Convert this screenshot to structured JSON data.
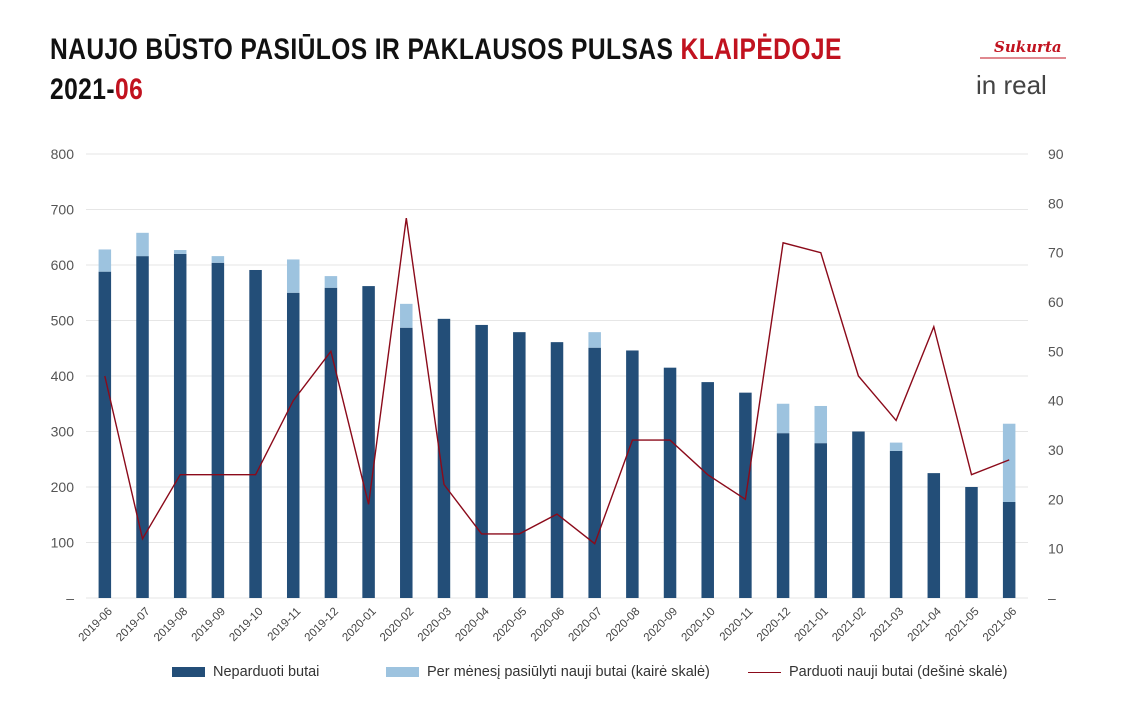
{
  "header": {
    "title_main": "NAUJO BŪSTO PASIŪLOS IR PAKLAUSOS PULSAS ",
    "title_city": "KLAIPĖDOJE",
    "period_prefix": "2021-",
    "period_month": "06"
  },
  "logo": {
    "tagline": "Sukurta",
    "brand": "in real"
  },
  "colors": {
    "unsold": "#234e78",
    "offered": "#9dc3df",
    "sold": "#8b0a1a",
    "accent": "#c1121f",
    "grid": "#e6e6e6"
  },
  "chart_data": {
    "type": "bar",
    "stacked": true,
    "categories": [
      "2019-06",
      "2019-07",
      "2019-08",
      "2019-09",
      "2019-10",
      "2019-11",
      "2019-12",
      "2020-01",
      "2020-02",
      "2020-03",
      "2020-04",
      "2020-05",
      "2020-06",
      "2020-07",
      "2020-08",
      "2020-09",
      "2020-10",
      "2020-11",
      "2020-12",
      "2021-01",
      "2021-02",
      "2021-03",
      "2021-04",
      "2021-05",
      "2021-06"
    ],
    "y_left": {
      "ylim": [
        0,
        800
      ],
      "ticks": [
        "–",
        "100",
        "200",
        "300",
        "400",
        "500",
        "600",
        "700",
        "800"
      ]
    },
    "y_right": {
      "ylim": [
        0,
        90
      ],
      "ticks": [
        "–",
        "10",
        "20",
        "30",
        "40",
        "50",
        "60",
        "70",
        "80",
        "90"
      ]
    },
    "series": [
      {
        "name": "Neparduoti butai",
        "kind": "bar",
        "axis": "left",
        "values": [
          588,
          616,
          620,
          604,
          591,
          550,
          559,
          562,
          487,
          503,
          492,
          479,
          461,
          451,
          446,
          415,
          389,
          370,
          297,
          279,
          300,
          265,
          225,
          200,
          173
        ]
      },
      {
        "name": "Per mėnesį pasiūlyti nauji butai (kairė skalė)",
        "kind": "bar",
        "axis": "left",
        "values": [
          40,
          42,
          7,
          12,
          0,
          60,
          21,
          0,
          43,
          0,
          0,
          0,
          0,
          28,
          0,
          0,
          0,
          0,
          53,
          67,
          0,
          15,
          0,
          0,
          141
        ]
      },
      {
        "name": "Parduoti nauji butai (dešinė skalė)",
        "kind": "line",
        "axis": "right",
        "values": [
          45,
          12,
          25,
          25,
          25,
          40,
          50,
          19,
          77,
          23,
          13,
          13,
          17,
          11,
          32,
          32,
          25,
          20,
          72,
          70,
          45,
          36,
          55,
          25,
          28
        ]
      }
    ],
    "grid": true,
    "legend_position": "bottom"
  }
}
